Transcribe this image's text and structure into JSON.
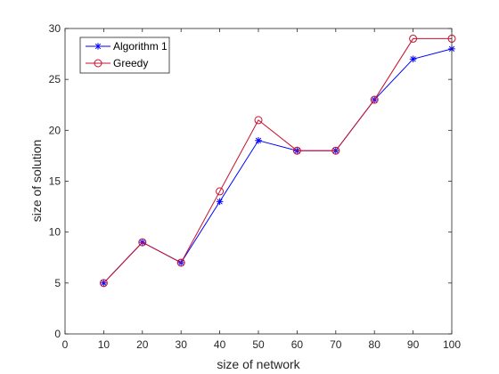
{
  "chart_data": {
    "type": "line",
    "xlabel": "size of network",
    "ylabel": "size of solution",
    "xlim": [
      0,
      100
    ],
    "ylim": [
      0,
      30
    ],
    "xticks": [
      0,
      10,
      20,
      30,
      40,
      50,
      60,
      70,
      80,
      90,
      100
    ],
    "yticks": [
      0,
      5,
      10,
      15,
      20,
      25,
      30
    ],
    "grid": false,
    "legend_position": "top-left",
    "x": [
      10,
      20,
      30,
      40,
      50,
      60,
      70,
      80,
      90,
      100
    ],
    "series": [
      {
        "name": "Algorithm 1",
        "values": [
          5,
          9,
          7,
          13,
          19,
          18,
          18,
          23,
          27,
          28
        ],
        "color": "#0000ff",
        "marker": "asterisk"
      },
      {
        "name": "Greedy",
        "values": [
          5,
          9,
          7,
          14,
          21,
          18,
          18,
          23,
          29,
          29
        ],
        "color": "#c8102e",
        "marker": "circle"
      }
    ]
  }
}
